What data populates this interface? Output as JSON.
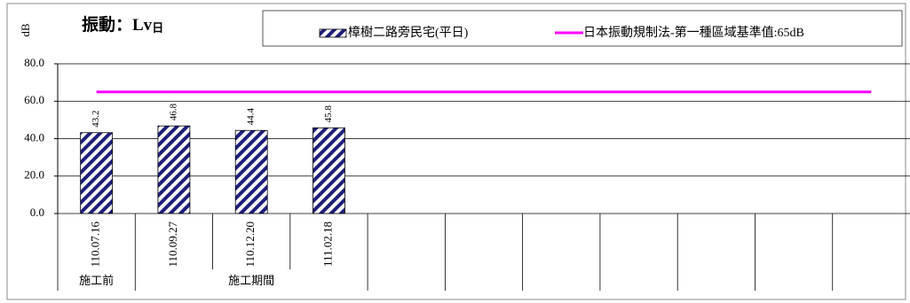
{
  "chart_data": {
    "type": "bar",
    "title": "振動：Lv",
    "title_subscript": "日",
    "y_label": "dB",
    "categories": [
      "110.07.16",
      "110.09.27",
      "110.12.20",
      "111.02.18",
      null,
      null,
      null,
      null,
      null,
      null,
      null
    ],
    "groups": [
      {
        "label": "施工前",
        "start": 0,
        "end": 0
      },
      {
        "label": "施工期間",
        "start": 1,
        "end": 3
      }
    ],
    "series": [
      {
        "name": "樟樹二路旁民宅(平日)",
        "type": "bar",
        "color": "#1f1f7a",
        "values": [
          43.2,
          46.8,
          44.4,
          45.8,
          null,
          null,
          null,
          null,
          null,
          null,
          null
        ]
      },
      {
        "name": "日本振動規制法-第一種區域基準值:65dB",
        "type": "line",
        "color": "#ff00ff",
        "values": [
          65,
          65,
          65,
          65,
          65,
          65,
          65,
          65,
          65,
          65,
          65
        ]
      }
    ],
    "ylim": [
      0,
      80
    ],
    "yticks": [
      {
        "value": 0,
        "label": "0.0"
      },
      {
        "value": 20,
        "label": "20.0"
      },
      {
        "value": 40,
        "label": "40.0"
      },
      {
        "value": 60,
        "label": "60.0"
      },
      {
        "value": 80,
        "label": "80.0"
      }
    ],
    "grid": true,
    "legend": "top"
  }
}
